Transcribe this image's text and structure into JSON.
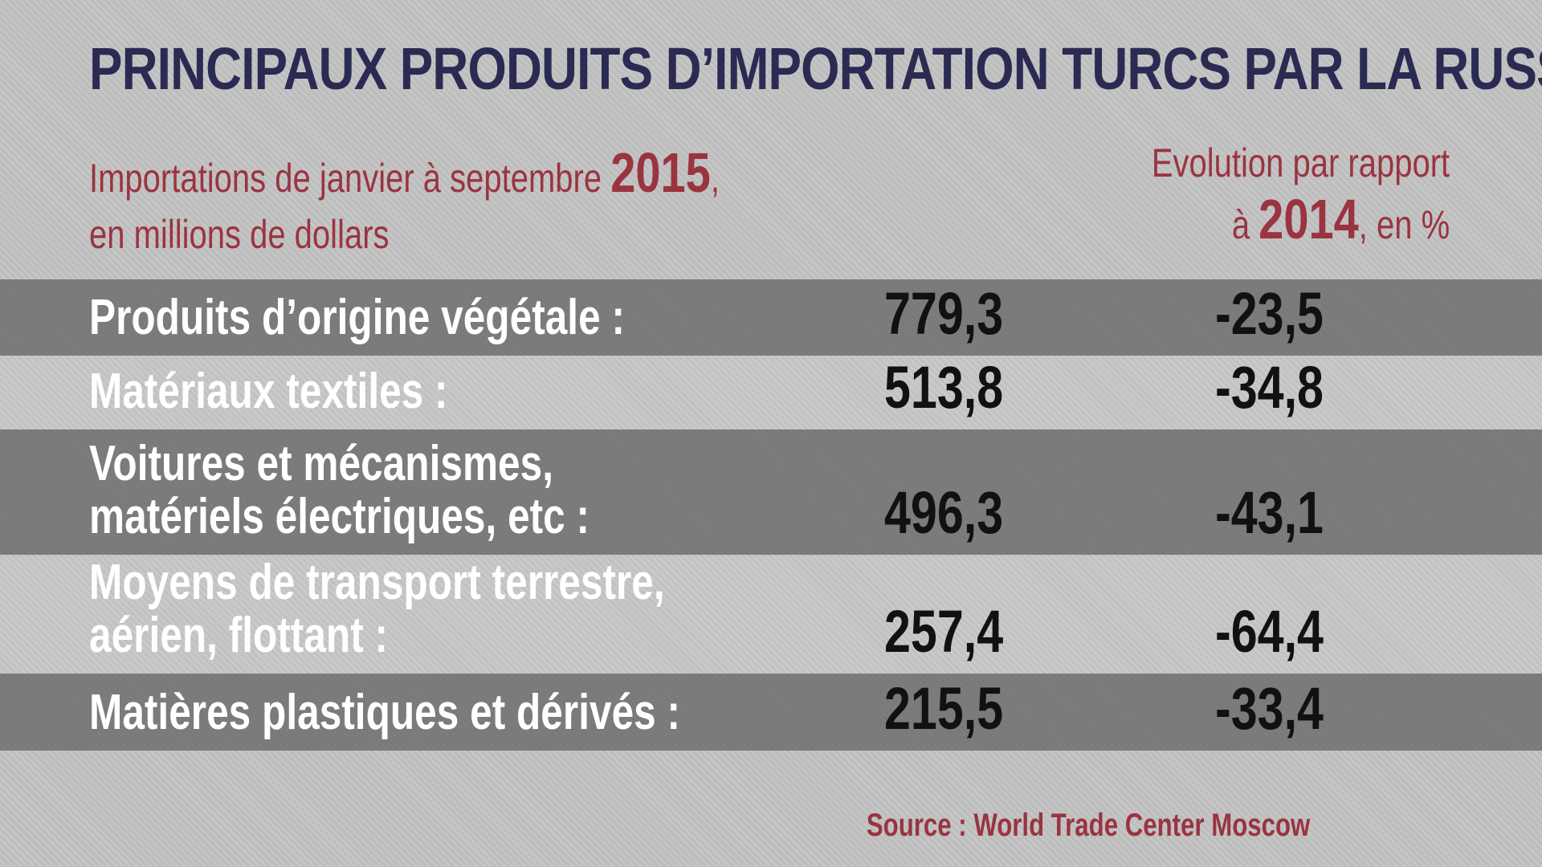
{
  "colors": {
    "background": "#bdbdbd",
    "title": "#2b2a53",
    "accent": "#9a3440",
    "row_label": "#ffffff",
    "row_value": "#111111"
  },
  "chart_data": {
    "type": "table",
    "title": "PRINCIPAUX PRODUITS D’IMPORTATION TURCS PAR LA RUSSIE",
    "headers": {
      "value": {
        "before": "Importations de janvier à septembre ",
        "year": "2015",
        "after": ",",
        "line2": "en millions de dollars"
      },
      "change": {
        "line1": "Evolution par rapport",
        "line2_before": "à ",
        "year": "2014",
        "line2_after": ", en %"
      }
    },
    "rows": [
      {
        "label": [
          "Produits d’origine végétale :"
        ],
        "value": "779,3",
        "change": "-23,5"
      },
      {
        "label": [
          "Matériaux textiles :"
        ],
        "value": "513,8",
        "change": "-34,8"
      },
      {
        "label": [
          "Voitures et mécanismes,",
          "matériels électriques, etc :"
        ],
        "value": "496,3",
        "change": "-43,1"
      },
      {
        "label": [
          "Moyens de transport terrestre,",
          "aérien, flottant :"
        ],
        "value": "257,4",
        "change": "-64,4"
      },
      {
        "label": [
          "Matières plastiques et dérivés :"
        ],
        "value": "215,5",
        "change": "-33,4"
      }
    ],
    "source": "Source : World Trade Center Moscow"
  }
}
